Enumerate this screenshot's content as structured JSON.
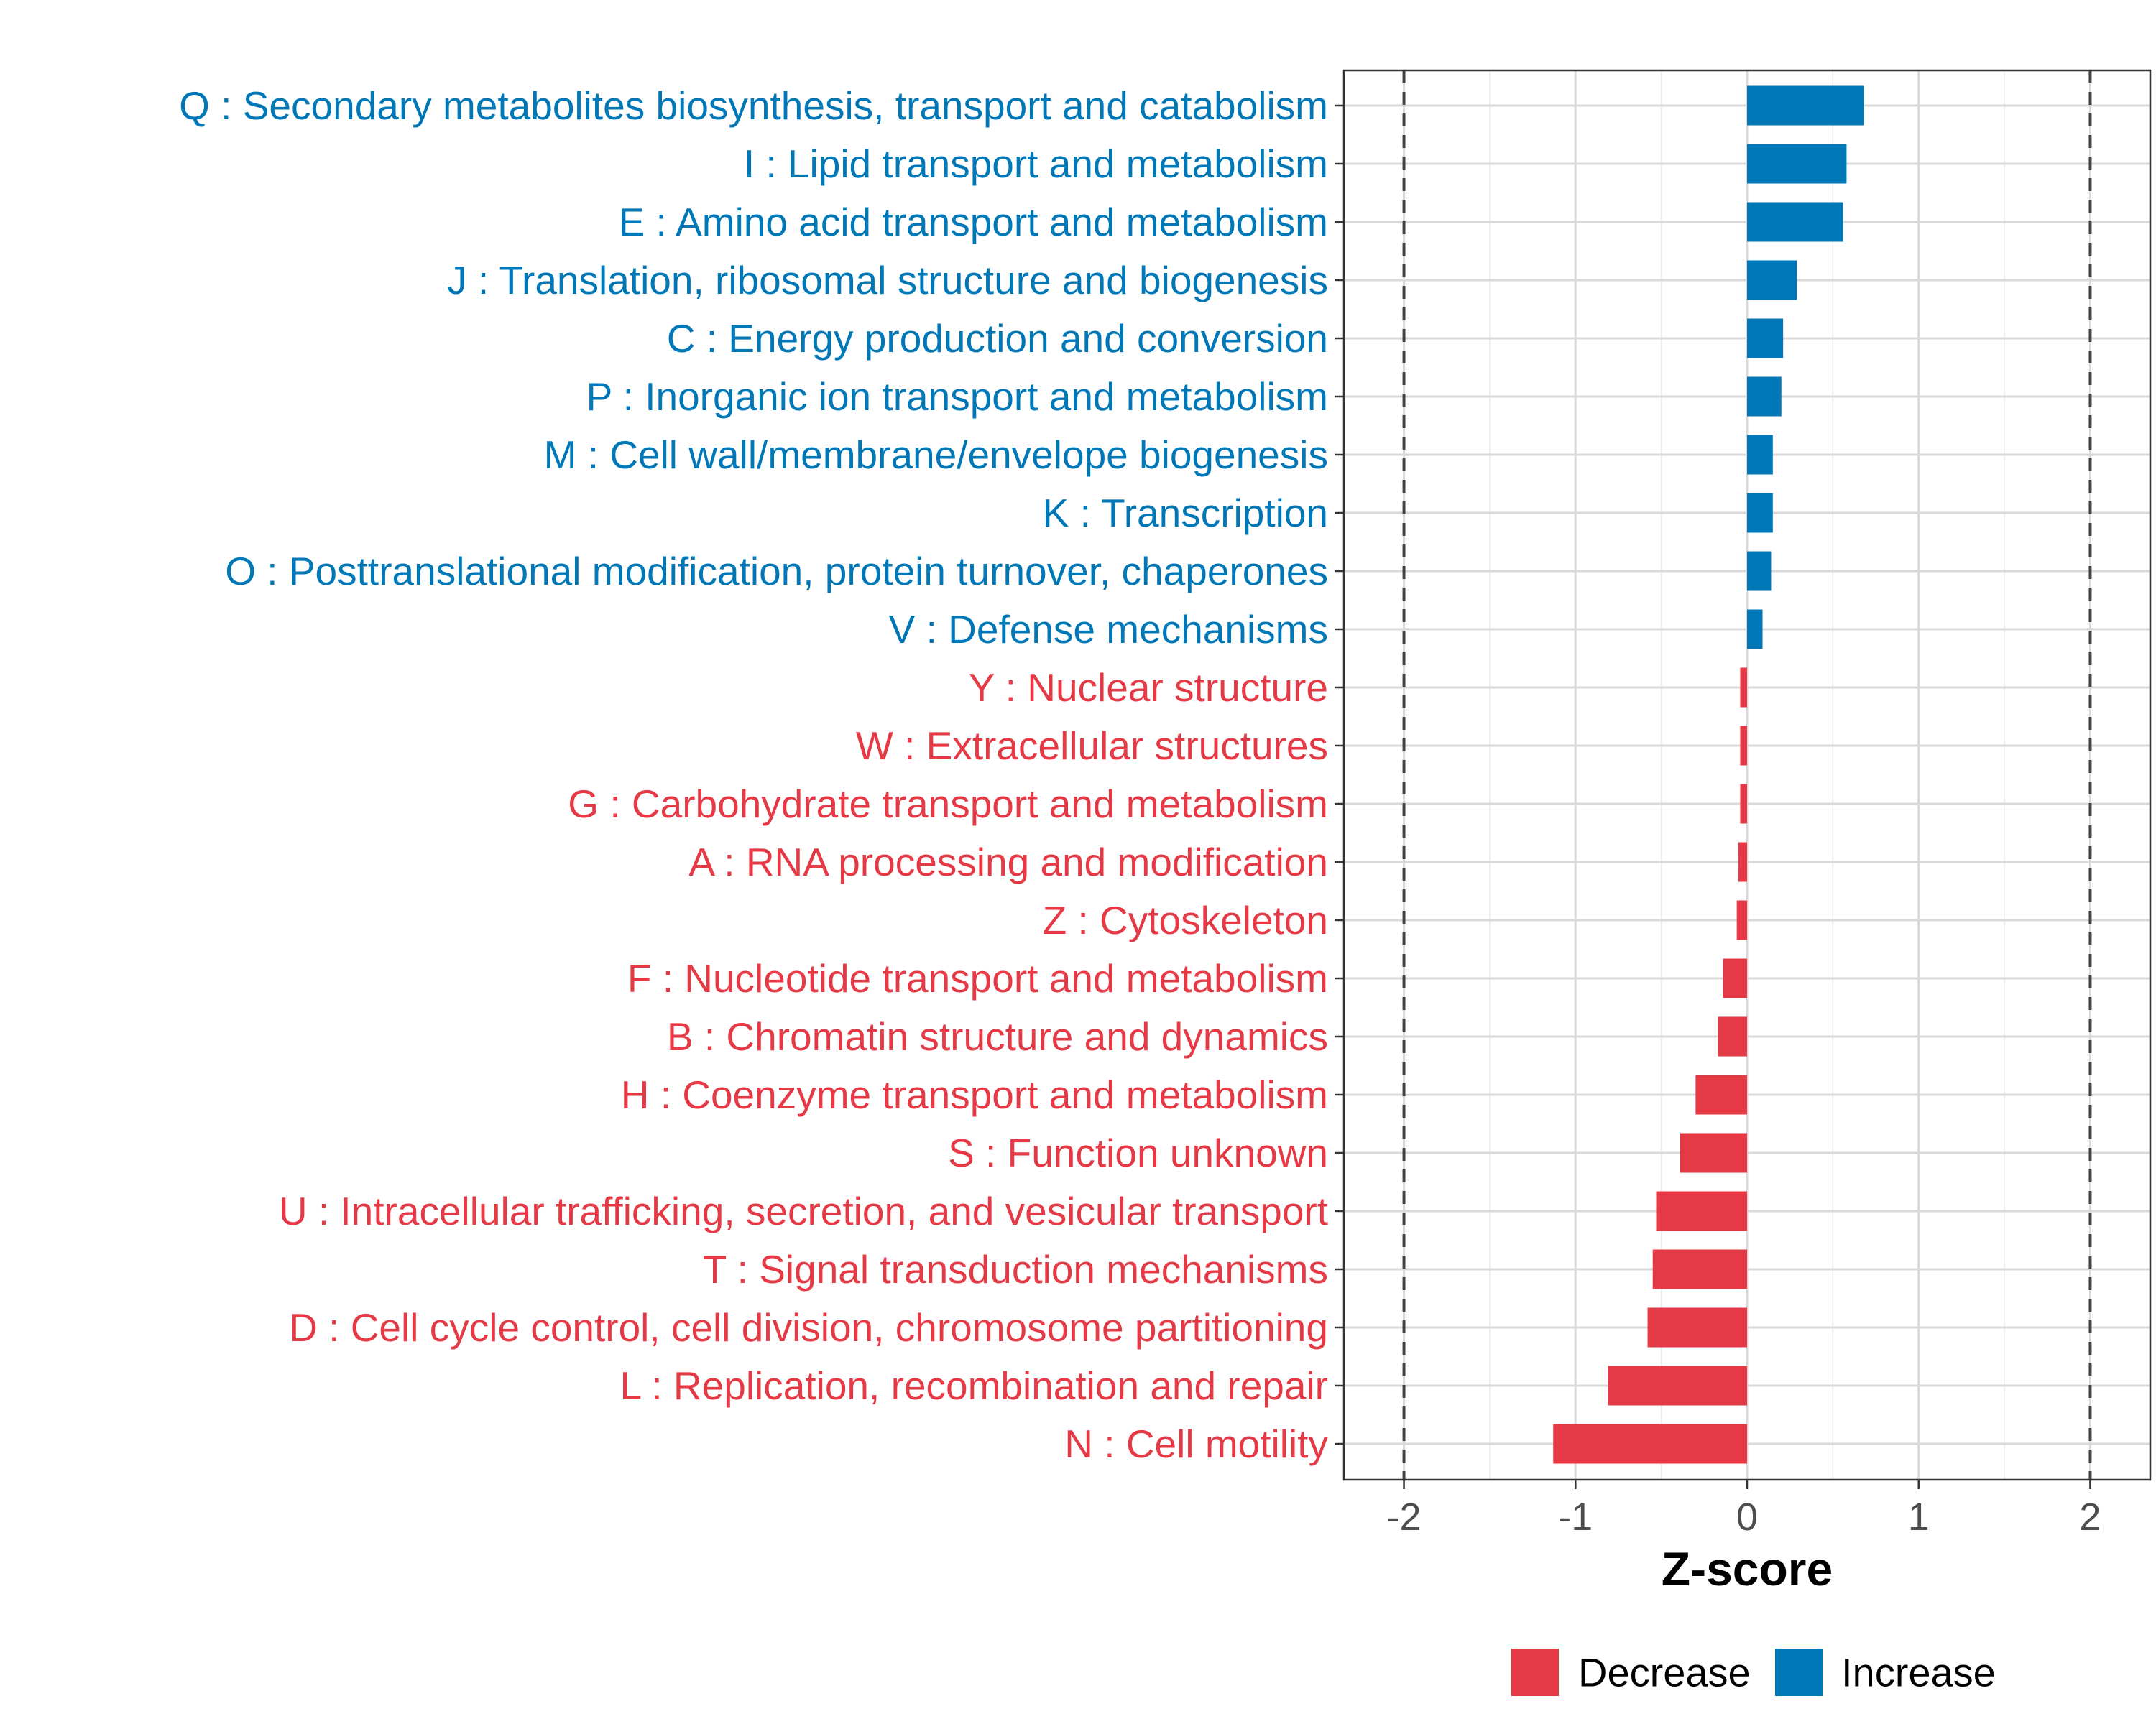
{
  "chart_data": {
    "type": "bar",
    "orientation": "horizontal",
    "categories": [
      "Q : Secondary metabolites biosynthesis, transport and catabolism",
      "I : Lipid transport and metabolism",
      "E : Amino acid transport and metabolism",
      "J : Translation, ribosomal structure and biogenesis",
      "C : Energy production and conversion",
      "P : Inorganic ion transport and metabolism",
      "M : Cell wall/membrane/envelope biogenesis",
      "K : Transcription",
      "O : Posttranslational modification, protein turnover, chaperones",
      "V : Defense mechanisms",
      "Y : Nuclear structure",
      "W : Extracellular structures",
      "G : Carbohydrate transport and metabolism",
      "A : RNA processing and modification",
      "Z : Cytoskeleton",
      "F : Nucleotide transport and metabolism",
      "B : Chromatin structure and dynamics",
      "H : Coenzyme transport and metabolism",
      "S : Function unknown",
      "U : Intracellular trafficking, secretion, and vesicular transport",
      "T : Signal transduction mechanisms",
      "D : Cell cycle control, cell division, chromosome partitioning",
      "L : Replication, recombination and repair",
      "N : Cell motility"
    ],
    "values": [
      0.68,
      0.58,
      0.56,
      0.29,
      0.21,
      0.2,
      0.15,
      0.15,
      0.14,
      0.09,
      -0.04,
      -0.04,
      -0.04,
      -0.05,
      -0.06,
      -0.14,
      -0.17,
      -0.3,
      -0.39,
      -0.53,
      -0.55,
      -0.58,
      -0.81,
      -1.13
    ],
    "groups": [
      "Increase",
      "Increase",
      "Increase",
      "Increase",
      "Increase",
      "Increase",
      "Increase",
      "Increase",
      "Increase",
      "Increase",
      "Decrease",
      "Decrease",
      "Decrease",
      "Decrease",
      "Decrease",
      "Decrease",
      "Decrease",
      "Decrease",
      "Decrease",
      "Decrease",
      "Decrease",
      "Decrease",
      "Decrease",
      "Decrease"
    ],
    "xlabel": "Z-score",
    "ylabel": "",
    "xlim": [
      -2.35,
      2.35
    ],
    "xticks": [
      -2,
      -1,
      0,
      1,
      2
    ],
    "xtick_labels": [
      "-2",
      "-1",
      "0",
      "1",
      "2"
    ],
    "reference_lines": [
      -2,
      2
    ],
    "grid": true,
    "legend": {
      "position": "bottom",
      "entries": [
        {
          "label": "Decrease",
          "color": "#E63946"
        },
        {
          "label": "Increase",
          "color": "#0077B6"
        }
      ]
    },
    "colors": {
      "Decrease": "#E63946",
      "Increase": "#0077B6"
    }
  }
}
